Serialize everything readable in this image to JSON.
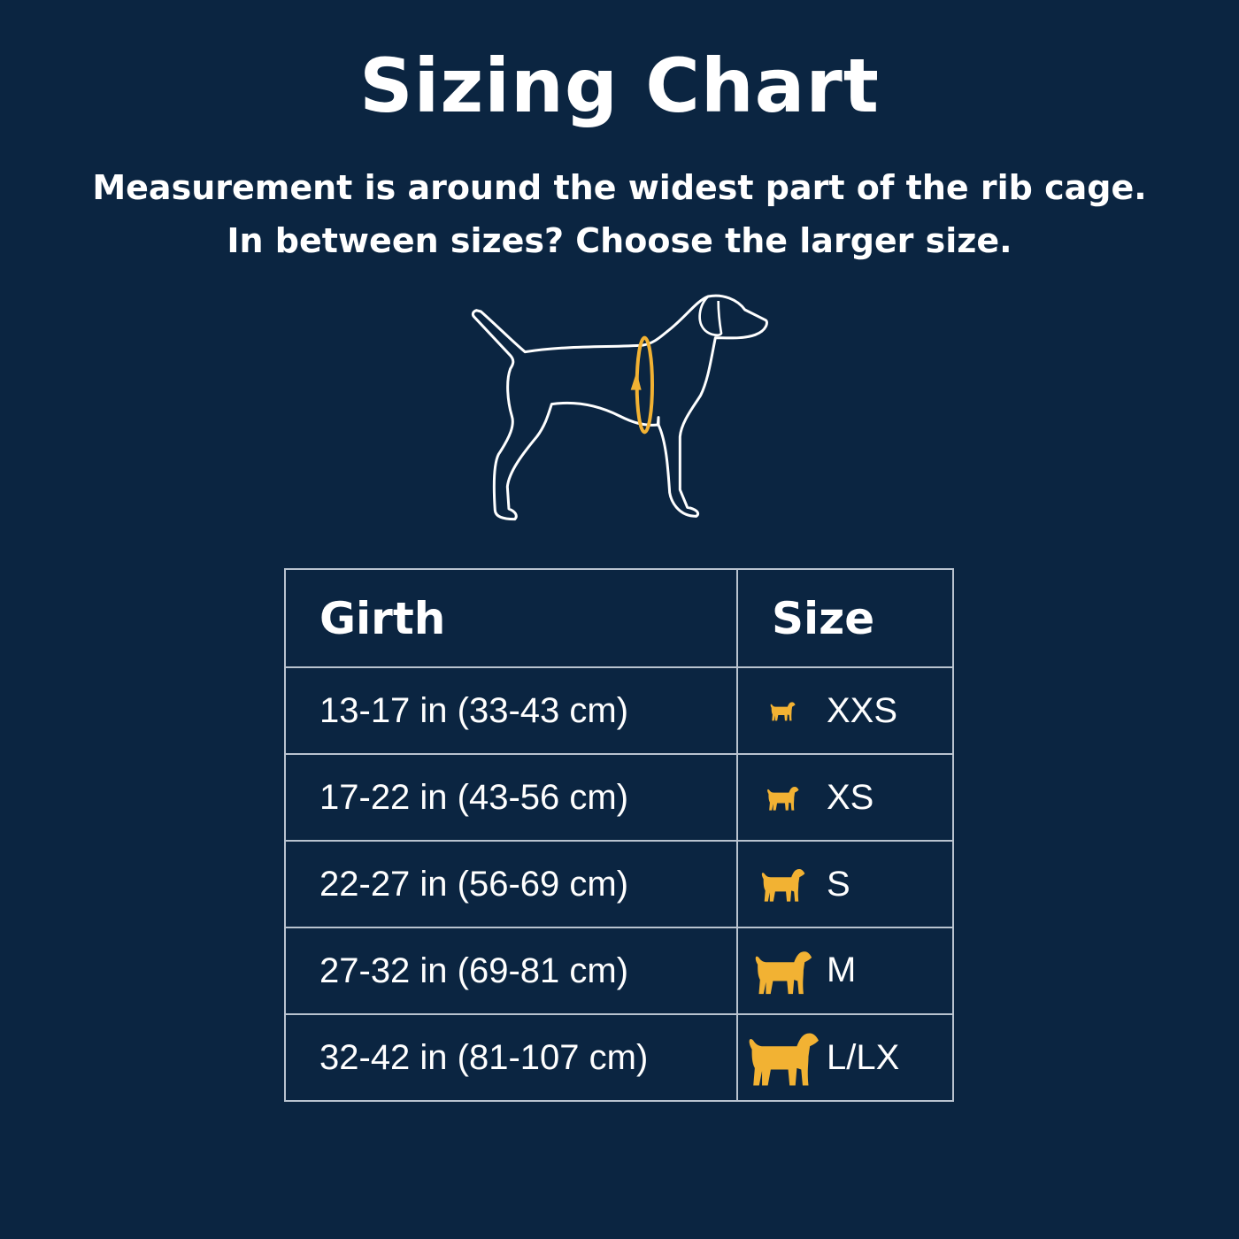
{
  "title": "Sizing Chart",
  "subtitle_lines": [
    "Measurement is around the widest part of the rib cage.",
    "In between sizes? Choose the larger size."
  ],
  "colors": {
    "background": "#0b2541",
    "accent": "#f2b233",
    "text": "#ffffff"
  },
  "illustration": "dog-outline-with-girth-measure-icon",
  "table": {
    "headers": [
      "Girth",
      "Size"
    ],
    "rows": [
      {
        "girth": "13-17 in (33-43 cm)",
        "size": "XXS",
        "icon": "chihuahua-icon"
      },
      {
        "girth": "17-22 in (43-56 cm)",
        "size": "XS",
        "icon": "pomeranian-icon"
      },
      {
        "girth": "22-27 in (56-69 cm)",
        "size": "S",
        "icon": "poodle-icon"
      },
      {
        "girth": "27-32 in (69-81 cm)",
        "size": "M",
        "icon": "retriever-icon"
      },
      {
        "girth": "32-42 in (81-107 cm)",
        "size": "L/LX",
        "icon": "large-dog-icon"
      }
    ]
  }
}
